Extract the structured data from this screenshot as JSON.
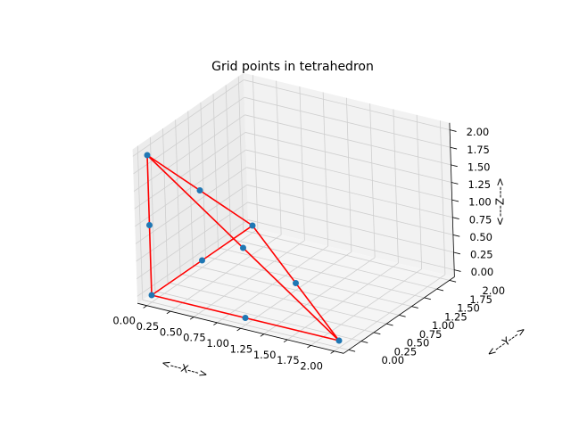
{
  "chart_data": {
    "type": "scatter",
    "title": "Grid points in tetrahedron",
    "xlabel": "<---X--->",
    "ylabel": "<---Y--->",
    "zlabel": "<---Z--->",
    "xlim": [
      0,
      2
    ],
    "ylim": [
      0,
      2
    ],
    "zlim": [
      0,
      2
    ],
    "grid": true,
    "x_ticks": [
      "0.00",
      "0.25",
      "0.50",
      "0.75",
      "1.00",
      "1.25",
      "1.50",
      "1.75",
      "2.00"
    ],
    "y_ticks": [
      "0.00",
      "0.25",
      "0.50",
      "0.75",
      "1.00",
      "1.25",
      "1.50",
      "1.75",
      "2.00"
    ],
    "z_ticks": [
      "0.00",
      "0.25",
      "0.50",
      "0.75",
      "1.00",
      "1.25",
      "1.50",
      "1.75",
      "2.00"
    ],
    "points": [
      {
        "x": 0,
        "y": 0,
        "z": 0
      },
      {
        "x": 2,
        "y": 0,
        "z": 0
      },
      {
        "x": 0,
        "y": 2,
        "z": 0
      },
      {
        "x": 0,
        "y": 0,
        "z": 2
      },
      {
        "x": 1,
        "y": 0,
        "z": 0
      },
      {
        "x": 0,
        "y": 1,
        "z": 0
      },
      {
        "x": 0,
        "y": 0,
        "z": 1
      },
      {
        "x": 1,
        "y": 1,
        "z": 0
      },
      {
        "x": 1,
        "y": 0,
        "z": 1
      },
      {
        "x": 0,
        "y": 1,
        "z": 1
      }
    ],
    "edges": [
      [
        [
          0,
          0,
          0
        ],
        [
          2,
          0,
          0
        ]
      ],
      [
        [
          0,
          0,
          0
        ],
        [
          0,
          2,
          0
        ]
      ],
      [
        [
          0,
          0,
          0
        ],
        [
          0,
          0,
          2
        ]
      ],
      [
        [
          2,
          0,
          0
        ],
        [
          0,
          2,
          0
        ]
      ],
      [
        [
          2,
          0,
          0
        ],
        [
          0,
          0,
          2
        ]
      ],
      [
        [
          0,
          2,
          0
        ],
        [
          0,
          0,
          2
        ]
      ]
    ],
    "point_color": "#1f77b4",
    "edge_color": "#ff0000"
  }
}
